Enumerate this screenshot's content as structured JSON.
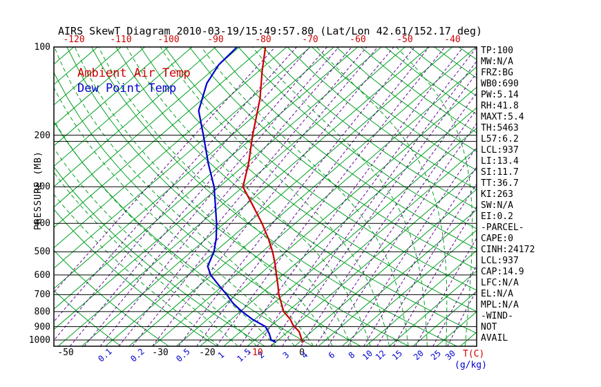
{
  "title": "AIRS SkewT Diagram 2010-03-19/15:49:57.80 (Lat/Lon 42.61/152.17 deg)",
  "legend": {
    "ambient": "Ambient Air Temp",
    "dewpoint": "Dew Point Temp"
  },
  "axes": {
    "pressure_axis_label": "PRESSURE (MB)",
    "temp_unit": "T(C)",
    "mixing_ratio_unit": "(g/kg)"
  },
  "colors": {
    "temp_curve": "#cc0000",
    "dewpoint_curve": "#0000cc",
    "isotherm_green": "#00a020",
    "mixing_ratio_purple": "#660099",
    "axis_black": "#000000",
    "top_axis_red": "#cc0000",
    "mixing_label_blue": "#0000cc"
  },
  "stats_panel": [
    "TP:100",
    "MW:N/A",
    "FRZ:BG",
    "WB0:690",
    "PW:5.14",
    "RH:41.8",
    "MAXT:5.4",
    "TH:5463",
    "L57:6.2",
    "LCL:937",
    "LI:13.4",
    "SI:11.7",
    "TT:36.7",
    "KI:263",
    "SW:N/A",
    "EI:0.2",
    "-PARCEL-",
    "CAPE:0",
    "CINH:24172",
    "LCL:937",
    "CAP:14.9",
    "LFC:N/A",
    "EL:N/A",
    "MPL:N/A",
    "-WIND-",
    "NOT",
    "AVAIL"
  ],
  "chart_data": {
    "type": "line",
    "subtype": "skewt-logp",
    "title": "AIRS SkewT Diagram",
    "datetime": "2010-03-19/15:49:57.80",
    "lat_lon": "42.61/152.17 deg",
    "y_axis": {
      "label": "PRESSURE (MB)",
      "scale": "log",
      "range_mb": [
        100,
        1050
      ],
      "ticks_mb": [
        100,
        200,
        300,
        400,
        500,
        600,
        700,
        800,
        900,
        1000
      ]
    },
    "x_axis": {
      "label": "T(C)",
      "skewed": true,
      "top_ticks_c": [
        -120,
        -110,
        -100,
        -90,
        -80,
        -70,
        -60,
        -50,
        -40
      ],
      "bottom_ticks_c": [
        {
          "t": -50,
          "color": "#000000"
        },
        {
          "t": -30,
          "color": "#000000"
        },
        {
          "t": -20,
          "color": "#000000"
        },
        {
          "t": -10,
          "color": "#cc0000"
        },
        {
          "t": 0,
          "color": "#000000"
        }
      ]
    },
    "mixing_ratio_labels_gkg": [
      0.1,
      0.2,
      0.5,
      1,
      1.5,
      2,
      3,
      4,
      6,
      8,
      10,
      12,
      15,
      20,
      25,
      30
    ],
    "background_lines": {
      "isotherms_c": {
        "min": -120,
        "max": 35,
        "step": 5
      },
      "dry_adiabats_theta_c": {
        "min": -40,
        "max": 190,
        "step": 10
      },
      "moist_adiabats_t1000_c": {
        "min": -16,
        "max": 36,
        "step": 4
      },
      "mixing_ratio_lines_gkg": [
        0.01,
        0.02,
        0.03,
        0.05,
        0.07,
        0.1,
        0.15,
        0.2,
        0.3,
        0.5,
        0.7,
        1,
        1.5,
        2,
        2.5,
        3,
        4,
        5,
        6,
        8,
        10,
        12,
        15,
        20,
        25,
        30
      ],
      "pressure_lines_mb": [
        200,
        300,
        400,
        500,
        600,
        700,
        800,
        900,
        1000
      ],
      "extra_pressure_line_mb": 210
    },
    "series": [
      {
        "name": "Ambient Air Temp",
        "color": "#cc0000",
        "points_p_t": [
          [
            1022,
            0.8
          ],
          [
            1000,
            0.0
          ],
          [
            937,
            -2.6
          ],
          [
            890,
            -5.5
          ],
          [
            850,
            -7.5
          ],
          [
            800,
            -10.8
          ],
          [
            750,
            -13.3
          ],
          [
            700,
            -16.0
          ],
          [
            650,
            -18.5
          ],
          [
            600,
            -21.3
          ],
          [
            550,
            -24.3
          ],
          [
            500,
            -27.8
          ],
          [
            450,
            -32.0
          ],
          [
            400,
            -37.0
          ],
          [
            350,
            -43.0
          ],
          [
            300,
            -50.0
          ],
          [
            250,
            -54.5
          ],
          [
            200,
            -60.6
          ],
          [
            150,
            -68.0
          ],
          [
            120,
            -74.5
          ],
          [
            100,
            -79.5
          ]
        ]
      },
      {
        "name": "Dew Point Temp",
        "color": "#0000cc",
        "points_p_t": [
          [
            1018,
            -4.9
          ],
          [
            1000,
            -6.5
          ],
          [
            950,
            -8.5
          ],
          [
            900,
            -11.0
          ],
          [
            850,
            -15.5
          ],
          [
            800,
            -19.6
          ],
          [
            750,
            -23.5
          ],
          [
            700,
            -27.0
          ],
          [
            650,
            -31.0
          ],
          [
            600,
            -35.2
          ],
          [
            560,
            -38.0
          ],
          [
            500,
            -40.2
          ],
          [
            450,
            -43.0
          ],
          [
            400,
            -46.6
          ],
          [
            350,
            -51.0
          ],
          [
            300,
            -56.1
          ],
          [
            250,
            -63.0
          ],
          [
            200,
            -71.0
          ],
          [
            165,
            -78.0
          ],
          [
            133,
            -83.0
          ],
          [
            115,
            -85.0
          ],
          [
            100,
            -85.5
          ]
        ]
      }
    ]
  }
}
